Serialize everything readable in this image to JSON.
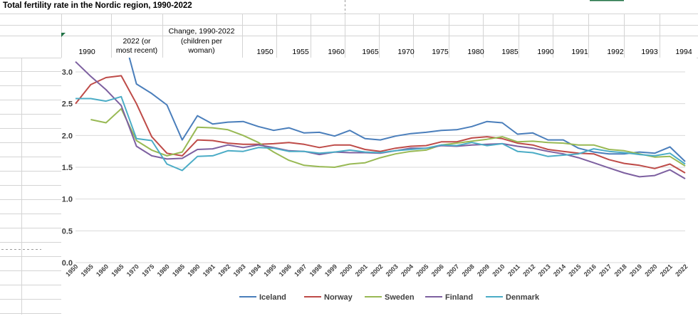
{
  "sheet": {
    "title": "Total fertility rate in the Nordic region, 1990-2022",
    "header_col_1990": "1990",
    "header_col_recent_line1": "2022 (or",
    "header_col_recent_line2": "most recent)",
    "header_col_change_line1": "Change, 1990-2022",
    "header_col_change_line2": "(children per",
    "header_col_change_line3": "woman)",
    "header_years": [
      "1950",
      "1955",
      "1960",
      "1965",
      "1970",
      "1975",
      "1980",
      "1985",
      "1990",
      "1991",
      "1992",
      "1993",
      "1994"
    ],
    "colors": {
      "gridline": "#d4d4d4",
      "marker_green": "#217346",
      "axis_text": "#404040"
    }
  },
  "chart_data": {
    "type": "line",
    "title": "",
    "xlabel": "",
    "ylabel": "",
    "ylim": [
      0,
      3.0
    ],
    "yticks": [
      "0.0",
      "0.5",
      "1.0",
      "1.5",
      "2.0",
      "2.5",
      "3.0"
    ],
    "grid": true,
    "legend_position": "bottom",
    "categories": [
      "1950",
      "1955",
      "1960",
      "1965",
      "1970",
      "1975",
      "1980",
      "1985",
      "1990",
      "1991",
      "1992",
      "1993",
      "1994",
      "1995",
      "1996",
      "1997",
      "1998",
      "1999",
      "2000",
      "2001",
      "2002",
      "2003",
      "2004",
      "2005",
      "2006",
      "2007",
      "2008",
      "2009",
      "2010",
      "2011",
      "2012",
      "2013",
      "2014",
      "2015",
      "2016",
      "2017",
      "2018",
      "2019",
      "2020",
      "2021",
      "2022"
    ],
    "series": [
      {
        "name": "Iceland",
        "color": "#4a7ebb",
        "values": [
          null,
          null,
          null,
          3.7,
          2.81,
          2.66,
          2.48,
          1.93,
          2.31,
          2.18,
          2.21,
          2.22,
          2.14,
          2.08,
          2.12,
          2.04,
          2.05,
          1.99,
          2.08,
          1.95,
          1.93,
          1.99,
          2.03,
          2.05,
          2.08,
          2.09,
          2.14,
          2.22,
          2.2,
          2.02,
          2.04,
          1.93,
          1.93,
          1.8,
          1.74,
          1.71,
          1.71,
          1.74,
          1.72,
          1.82,
          1.59
        ]
      },
      {
        "name": "Norway",
        "color": "#be4b48",
        "values": [
          2.5,
          2.8,
          2.91,
          2.94,
          2.5,
          1.98,
          1.72,
          1.68,
          1.93,
          1.92,
          1.88,
          1.86,
          1.86,
          1.87,
          1.89,
          1.86,
          1.81,
          1.85,
          1.85,
          1.78,
          1.75,
          1.8,
          1.83,
          1.84,
          1.9,
          1.9,
          1.96,
          1.98,
          1.95,
          1.88,
          1.85,
          1.78,
          1.75,
          1.72,
          1.71,
          1.62,
          1.56,
          1.53,
          1.48,
          1.55,
          1.41
        ]
      },
      {
        "name": "Sweden",
        "color": "#98b954",
        "values": [
          null,
          2.25,
          2.2,
          2.42,
          1.92,
          1.77,
          1.68,
          1.74,
          2.13,
          2.12,
          2.09,
          2.0,
          1.89,
          1.74,
          1.61,
          1.53,
          1.51,
          1.5,
          1.55,
          1.57,
          1.65,
          1.71,
          1.75,
          1.77,
          1.85,
          1.88,
          1.91,
          1.94,
          1.98,
          1.9,
          1.91,
          1.89,
          1.88,
          1.85,
          1.85,
          1.78,
          1.76,
          1.71,
          1.66,
          1.67,
          1.52
        ]
      },
      {
        "name": "Finland",
        "color": "#7d60a0",
        "values": [
          3.16,
          2.93,
          2.72,
          2.47,
          1.83,
          1.68,
          1.63,
          1.64,
          1.78,
          1.79,
          1.85,
          1.81,
          1.85,
          1.81,
          1.76,
          1.75,
          1.7,
          1.74,
          1.73,
          1.73,
          1.72,
          1.76,
          1.8,
          1.8,
          1.84,
          1.83,
          1.85,
          1.86,
          1.87,
          1.83,
          1.8,
          1.75,
          1.71,
          1.65,
          1.57,
          1.49,
          1.41,
          1.35,
          1.37,
          1.46,
          1.32
        ]
      },
      {
        "name": "Denmark",
        "color": "#4bacc6",
        "values": [
          2.58,
          2.58,
          2.54,
          2.61,
          1.95,
          1.92,
          1.55,
          1.45,
          1.67,
          1.68,
          1.76,
          1.75,
          1.81,
          1.8,
          1.75,
          1.75,
          1.72,
          1.74,
          1.77,
          1.74,
          1.73,
          1.76,
          1.78,
          1.8,
          1.85,
          1.84,
          1.89,
          1.84,
          1.87,
          1.75,
          1.73,
          1.67,
          1.69,
          1.71,
          1.79,
          1.75,
          1.73,
          1.7,
          1.68,
          1.72,
          1.55
        ]
      }
    ]
  }
}
